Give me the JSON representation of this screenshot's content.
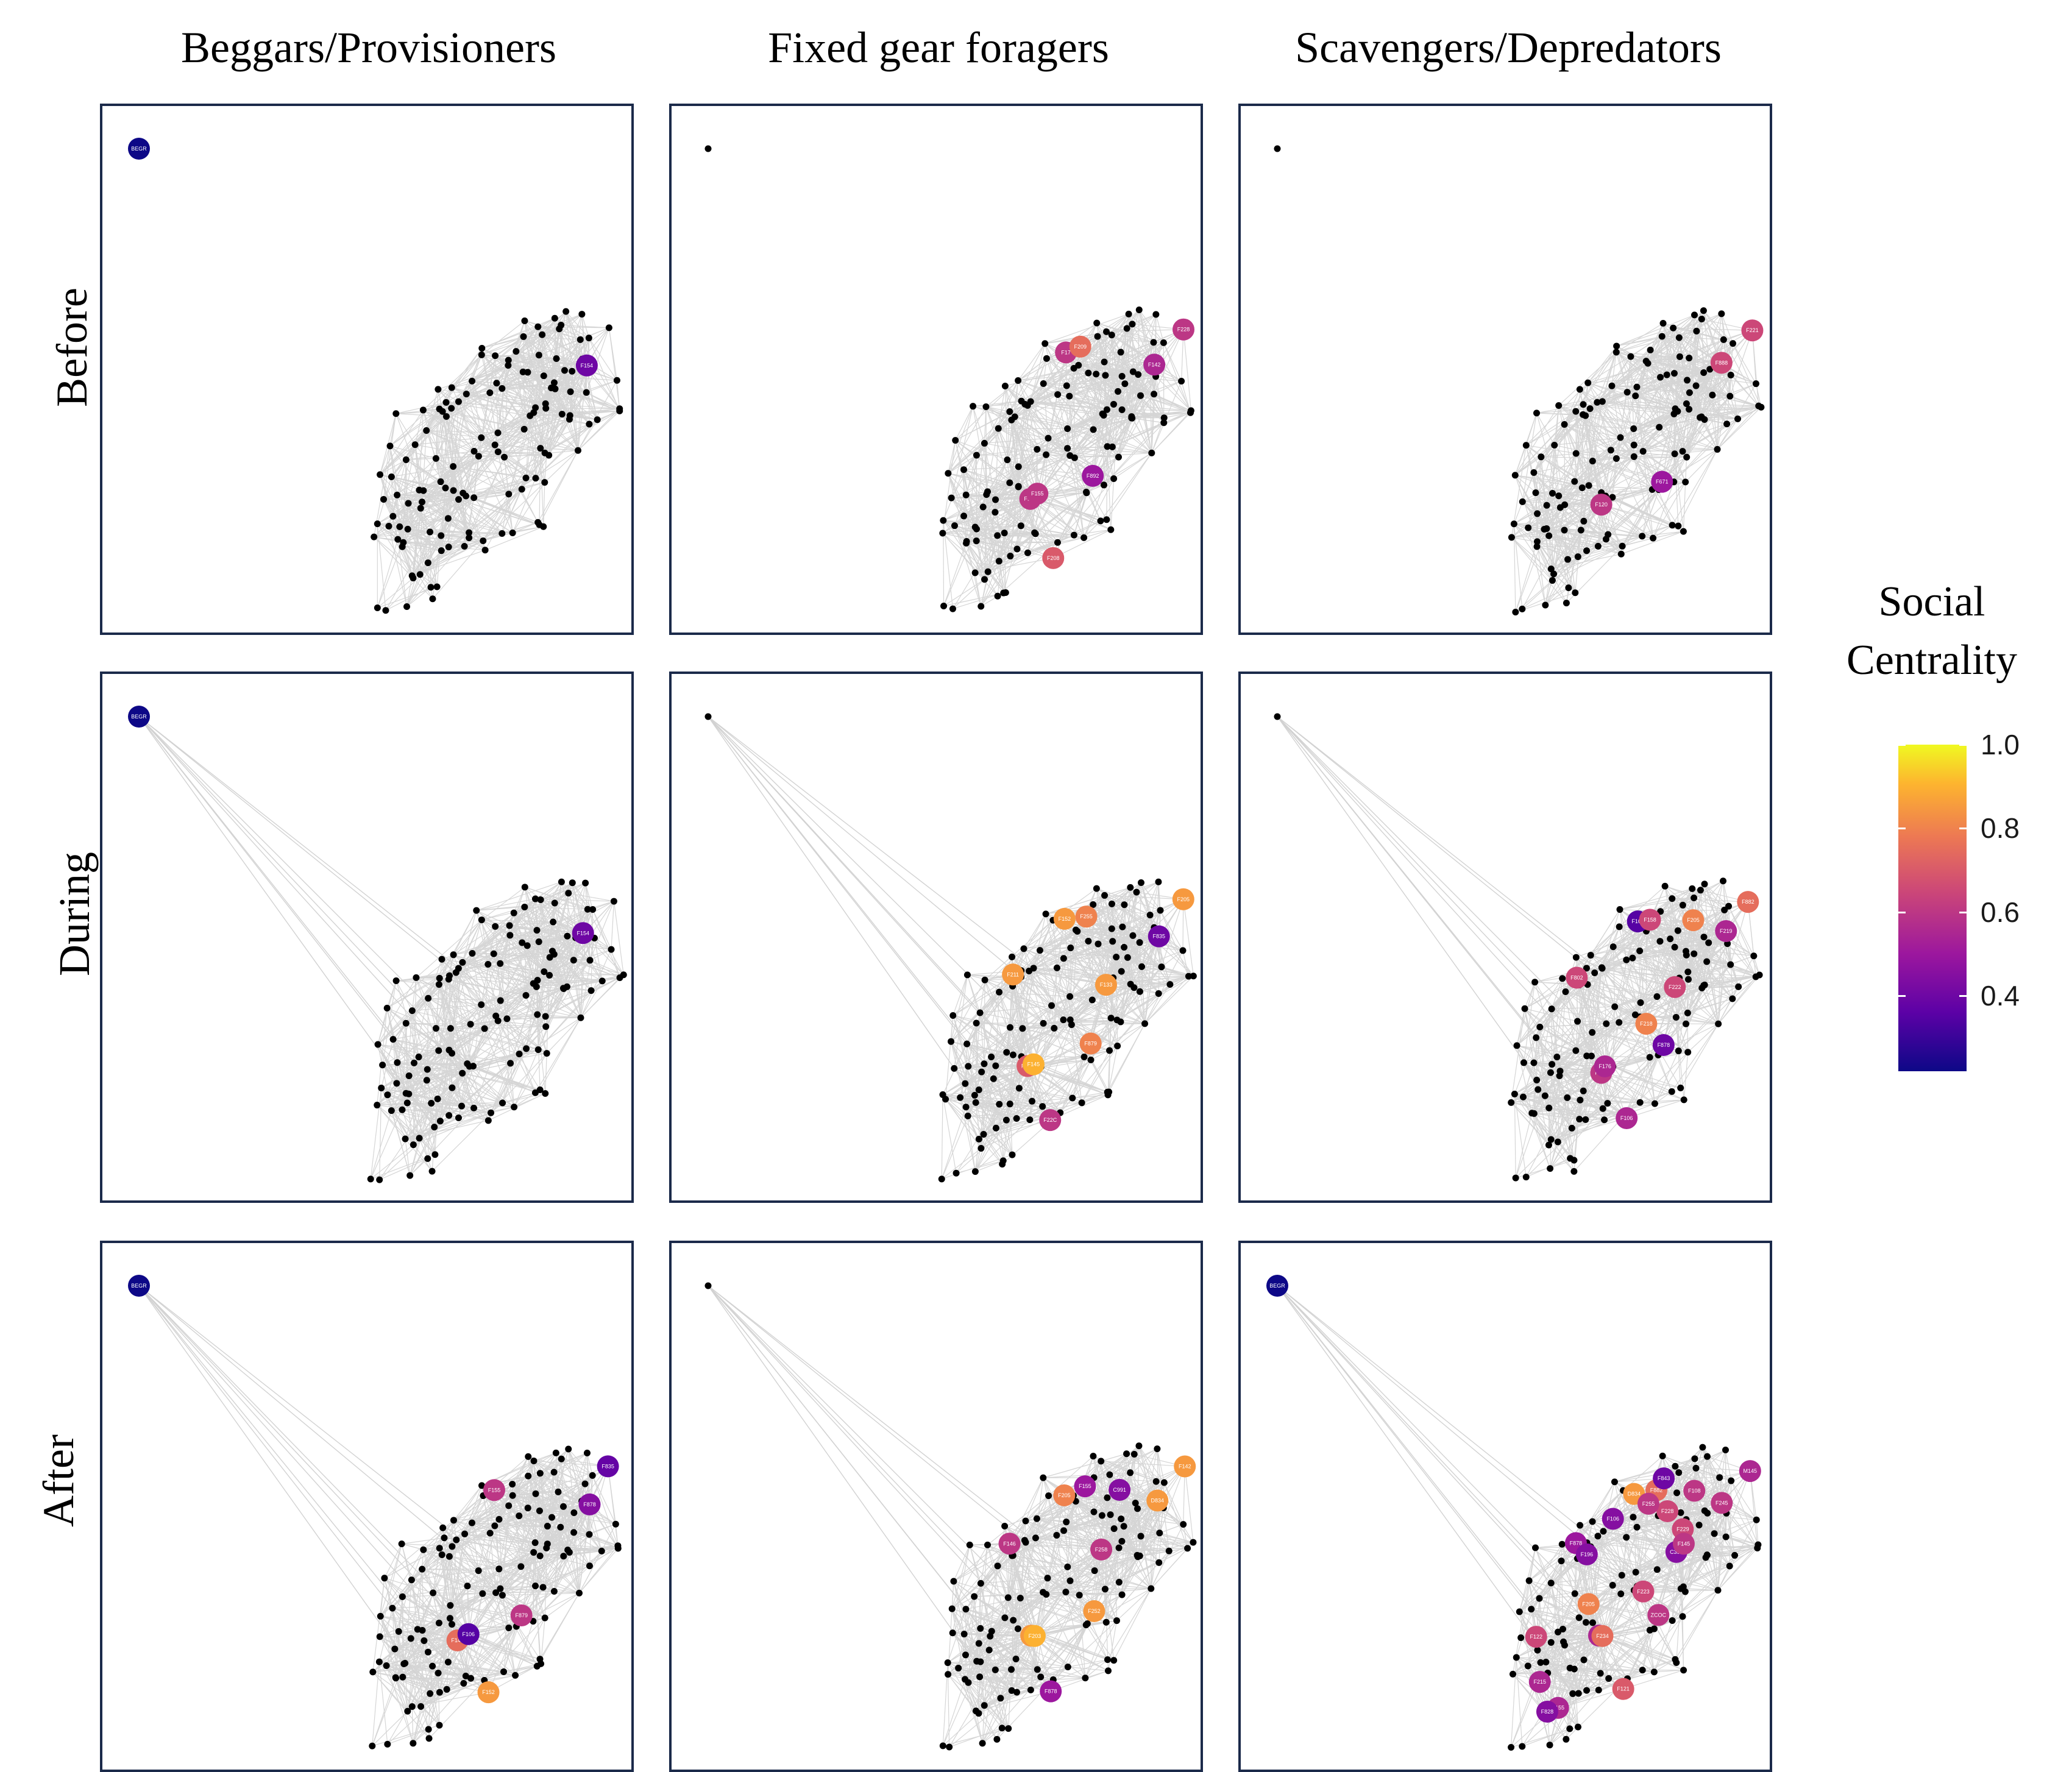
{
  "column_titles": [
    "Beggars/Provisioners",
    "Fixed gear foragers",
    "Scavengers/Depredators"
  ],
  "row_titles": [
    "Before",
    "During",
    "After"
  ],
  "legend": {
    "title_line1": "Social",
    "title_line2": "Centrality",
    "ticks": [
      {
        "value": 1.0,
        "label": "1.0"
      },
      {
        "value": 0.8,
        "label": "0.8"
      },
      {
        "value": 0.6,
        "label": "0.6"
      },
      {
        "value": 0.4,
        "label": "0.4"
      }
    ],
    "range": [
      0.22,
      1.0
    ]
  },
  "chart_data": [
    {
      "type": "network",
      "row": "Before",
      "column": "Beggars/Provisioners",
      "outlier_connected": false,
      "highlighted": [
        {
          "id": "BEGR",
          "centrality": 0.22,
          "outlier": true
        },
        {
          "id": "F154",
          "centrality": 0.4
        }
      ]
    },
    {
      "type": "network",
      "row": "Before",
      "column": "Fixed gear foragers",
      "outlier_connected": false,
      "highlighted": [
        {
          "id": "F142",
          "centrality": 0.55
        },
        {
          "id": "F228",
          "centrality": 0.6
        },
        {
          "id": "F125",
          "centrality": 0.6
        },
        {
          "id": "F892",
          "centrality": 0.5
        },
        {
          "id": "F155",
          "centrality": 0.6
        },
        {
          "id": "F17",
          "centrality": 0.6
        },
        {
          "id": "F208",
          "centrality": 0.7
        },
        {
          "id": "F209",
          "centrality": 0.75
        }
      ]
    },
    {
      "type": "network",
      "row": "Before",
      "column": "Scavengers/Depredators",
      "outlier_connected": false,
      "highlighted": [
        {
          "id": "F888",
          "centrality": 0.65
        },
        {
          "id": "F221",
          "centrality": 0.65
        },
        {
          "id": "F120",
          "centrality": 0.6
        },
        {
          "id": "F671",
          "centrality": 0.5
        }
      ]
    },
    {
      "type": "network",
      "row": "During",
      "column": "Beggars/Provisioners",
      "outlier_connected": true,
      "highlighted": [
        {
          "id": "BEGR",
          "centrality": 0.22,
          "outlier": true
        },
        {
          "id": "F154",
          "centrality": 0.4
        }
      ]
    },
    {
      "type": "network",
      "row": "During",
      "column": "Fixed gear foragers",
      "outlier_connected": true,
      "highlighted": [
        {
          "id": "F835",
          "centrality": 0.4
        },
        {
          "id": "F205",
          "centrality": 0.85
        },
        {
          "id": "F229",
          "centrality": 0.7
        },
        {
          "id": "F879",
          "centrality": 0.8
        },
        {
          "id": "F145",
          "centrality": 0.9
        },
        {
          "id": "F152",
          "centrality": 0.85
        },
        {
          "id": "F22C",
          "centrality": 0.6
        },
        {
          "id": "F255",
          "centrality": 0.8
        },
        {
          "id": "F211",
          "centrality": 0.85
        },
        {
          "id": "F133",
          "centrality": 0.85
        }
      ]
    },
    {
      "type": "network",
      "row": "During",
      "column": "Scavengers/Depredators",
      "outlier_connected": true,
      "highlighted": [
        {
          "id": "F219",
          "centrality": 0.55
        },
        {
          "id": "F882",
          "centrality": 0.75
        },
        {
          "id": "F844",
          "centrality": 0.6
        },
        {
          "id": "F878",
          "centrality": 0.4
        },
        {
          "id": "F176",
          "centrality": 0.55
        },
        {
          "id": "F162",
          "centrality": 0.35
        },
        {
          "id": "F106",
          "centrality": 0.55
        },
        {
          "id": "F158",
          "centrality": 0.65
        },
        {
          "id": "F802",
          "centrality": 0.65
        },
        {
          "id": "F222",
          "centrality": 0.65
        },
        {
          "id": "F205",
          "centrality": 0.8
        },
        {
          "id": "F218",
          "centrality": 0.8
        }
      ]
    },
    {
      "type": "network",
      "row": "After",
      "column": "Beggars/Provisioners",
      "outlier_connected": true,
      "highlighted": [
        {
          "id": "BEGR",
          "centrality": 0.22,
          "outlier": true
        },
        {
          "id": "F878",
          "centrality": 0.45
        },
        {
          "id": "F835",
          "centrality": 0.38
        },
        {
          "id": "F146",
          "centrality": 0.75
        },
        {
          "id": "F879",
          "centrality": 0.6
        },
        {
          "id": "F106",
          "centrality": 0.35
        },
        {
          "id": "F155",
          "centrality": 0.6
        },
        {
          "id": "F152",
          "centrality": 0.85
        }
      ]
    },
    {
      "type": "network",
      "row": "After",
      "column": "Fixed gear foragers",
      "outlier_connected": true,
      "highlighted": [
        {
          "id": "D834",
          "centrality": 0.85
        },
        {
          "id": "F142",
          "centrality": 0.85
        },
        {
          "id": "F226",
          "centrality": 0.85
        },
        {
          "id": "F252",
          "centrality": 0.85
        },
        {
          "id": "F203",
          "centrality": 0.9
        },
        {
          "id": "F205",
          "centrality": 0.8
        },
        {
          "id": "F878",
          "centrality": 0.5
        },
        {
          "id": "F155",
          "centrality": 0.5
        },
        {
          "id": "F146",
          "centrality": 0.6
        },
        {
          "id": "F258",
          "centrality": 0.6
        },
        {
          "id": "C991",
          "centrality": 0.45
        }
      ]
    },
    {
      "type": "network",
      "row": "After",
      "column": "Scavengers/Depredators",
      "outlier_connected": true,
      "highlighted": [
        {
          "id": "BEGR",
          "centrality": 0.22,
          "outlier": true
        },
        {
          "id": "F245",
          "centrality": 0.6
        },
        {
          "id": "M145",
          "centrality": 0.55
        },
        {
          "id": "F219",
          "centrality": 0.55
        },
        {
          "id": "ZCOC",
          "centrality": 0.6
        },
        {
          "id": "F234",
          "centrality": 0.75
        },
        {
          "id": "D834",
          "centrality": 0.85
        },
        {
          "id": "F121",
          "centrality": 0.7
        },
        {
          "id": "F882",
          "centrality": 0.75
        },
        {
          "id": "F878",
          "centrality": 0.5
        },
        {
          "id": "C396",
          "centrality": 0.45
        },
        {
          "id": "F108",
          "centrality": 0.6
        },
        {
          "id": "F223",
          "centrality": 0.65
        },
        {
          "id": "F215",
          "centrality": 0.55
        },
        {
          "id": "F229",
          "centrality": 0.65
        },
        {
          "id": "F122",
          "centrality": 0.65
        },
        {
          "id": "F155",
          "centrality": 0.55
        },
        {
          "id": "F843",
          "centrality": 0.4
        },
        {
          "id": "F228",
          "centrality": 0.65
        },
        {
          "id": "F106",
          "centrality": 0.45
        },
        {
          "id": "F828",
          "centrality": 0.45
        },
        {
          "id": "F196",
          "centrality": 0.45
        },
        {
          "id": "F205",
          "centrality": 0.8
        },
        {
          "id": "F145",
          "centrality": 0.6
        },
        {
          "id": "F255",
          "centrality": 0.6
        }
      ]
    }
  ]
}
